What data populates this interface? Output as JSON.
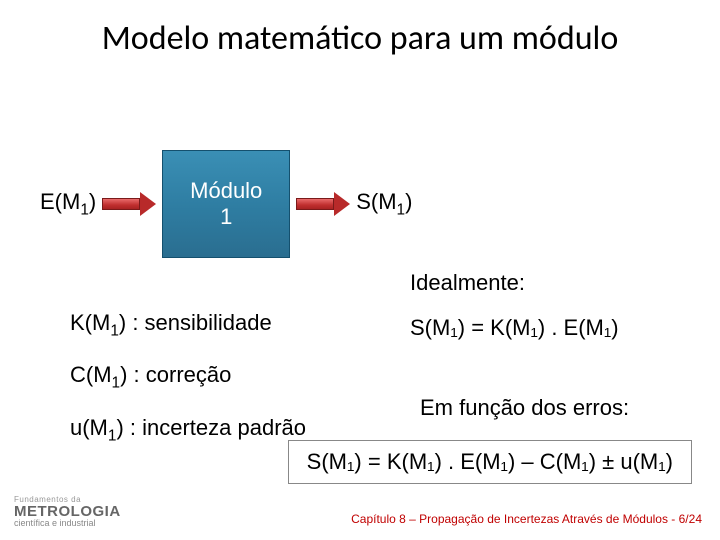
{
  "title": "Modelo matemático para um módulo",
  "diagram": {
    "input_label": "E(M",
    "input_sub": "1",
    "input_close": ")",
    "module_line1": "Módulo",
    "module_line2": "1",
    "output_label": "S(M",
    "output_sub": "1",
    "output_close": ")",
    "arrow_color": "#b82a2a",
    "box_color": "#2f7ea3"
  },
  "definitions": {
    "k": {
      "pre": "K(M",
      "sub": "1",
      "post": ") : sensibilidade"
    },
    "c": {
      "pre": "C(M",
      "sub": "1",
      "post": ") : correção"
    },
    "u": {
      "pre": "u(M",
      "sub": "1",
      "post": ") : incerteza padrão"
    }
  },
  "ideal": {
    "label": "Idealmente:",
    "eq": "S(M₁) = K(M₁) . E(M₁)"
  },
  "errors": {
    "label": "Em função dos erros:",
    "eq": "S(M₁) = K(M₁) . E(M₁) – C(M₁) ± u(M₁)"
  },
  "footer": {
    "l1": "Fundamentos da",
    "l2": "METROLOGIA",
    "l3": "científica e industrial",
    "right": "Capítulo 8 – Propagação de Incertezas Através de Módulos - 6/24"
  }
}
